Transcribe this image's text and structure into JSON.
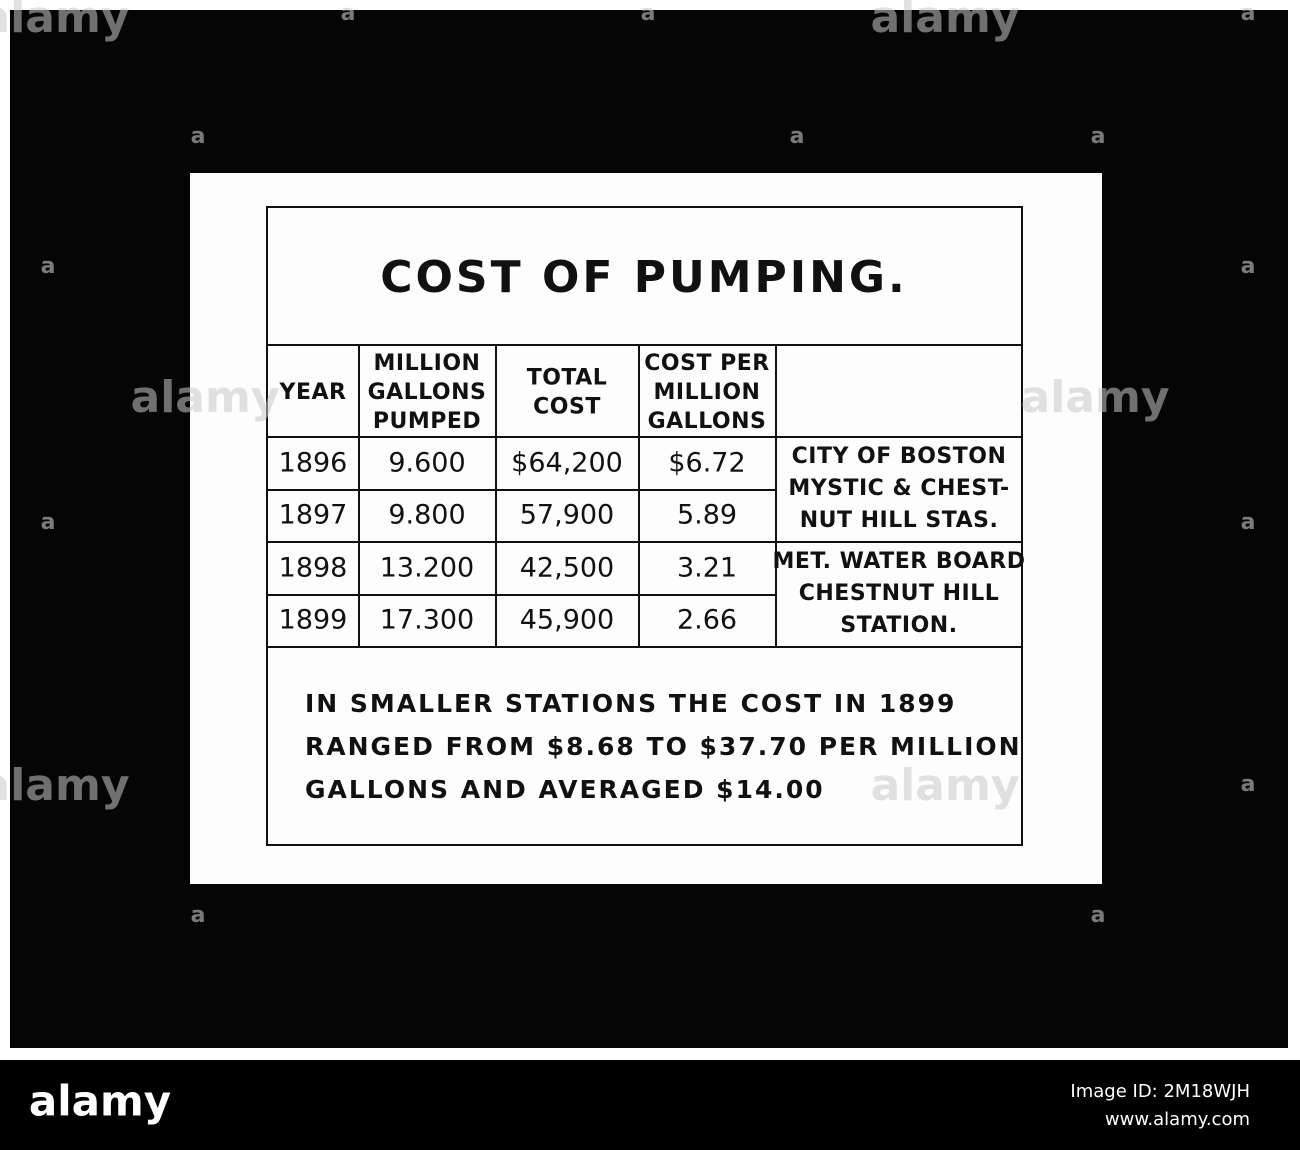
{
  "title": "COST OF PUMPING.",
  "table": {
    "header": [
      [
        "YEAR"
      ],
      [
        "MILLION",
        "GALLONS",
        "PUMPED"
      ],
      [
        "TOTAL",
        "COST"
      ],
      [
        "COST PER",
        "MILLION",
        "GALLONS"
      ]
    ],
    "rows": [
      [
        "1896",
        "9.600",
        "$64,200",
        "$6.72"
      ],
      [
        "1897",
        "9.800",
        "57,900",
        "5.89"
      ],
      [
        "1898",
        "13.200",
        "42,500",
        "3.21"
      ],
      [
        "1899",
        "17.300",
        "45,900",
        "2.66"
      ]
    ],
    "stations": [
      [
        "CITY OF BOSTON",
        "MYSTIC & CHEST-",
        "NUT HILL STAS."
      ],
      [
        "MET. WATER BOARD",
        "CHESTNUT HILL",
        "STATION."
      ]
    ]
  },
  "note": [
    "IN SMALLER STATIONS THE COST IN 1899",
    "RANGED FROM $8.68 TO $37.70 PER MILLION",
    "GALLONS AND AVERAGED $14.00"
  ],
  "watermark": {
    "logo": "alamy",
    "letter": "a"
  },
  "footer": {
    "logo": "alamy",
    "image_id": "Image ID: 2M18WJH",
    "url": "www.alamy.com"
  }
}
